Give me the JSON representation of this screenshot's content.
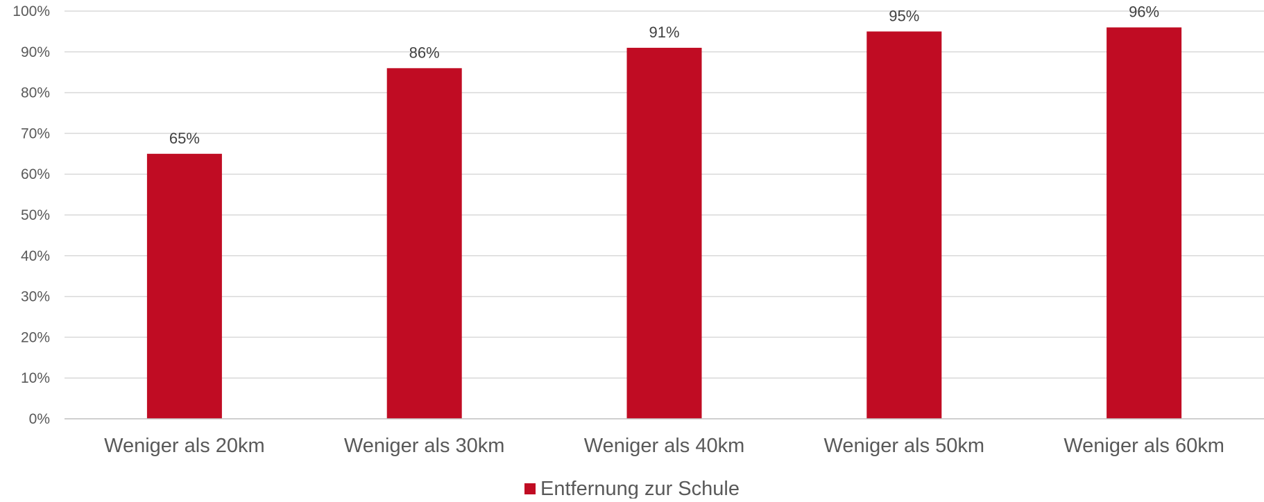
{
  "chart_data": {
    "type": "bar",
    "categories": [
      "Weniger als 20km",
      "Weniger als 30km",
      "Weniger als 40km",
      "Weniger als 50km",
      "Weniger als 60km"
    ],
    "series": [
      {
        "name": "Entfernung zur Schule",
        "values": [
          65,
          86,
          91,
          95,
          96
        ],
        "data_labels": [
          "65%",
          "86%",
          "91%",
          "95%",
          "96%"
        ],
        "color": "#C00C23"
      }
    ],
    "yticks": [
      "0%",
      "10%",
      "20%",
      "30%",
      "40%",
      "50%",
      "60%",
      "70%",
      "80%",
      "90%",
      "100%"
    ],
    "ylim": [
      0,
      100
    ],
    "grid": true,
    "legend_position": "bottom",
    "colors": {
      "bar": "#C00C23",
      "grid": "#D9D9D9",
      "axis": "#BFBFBF",
      "text": "#595959"
    }
  }
}
